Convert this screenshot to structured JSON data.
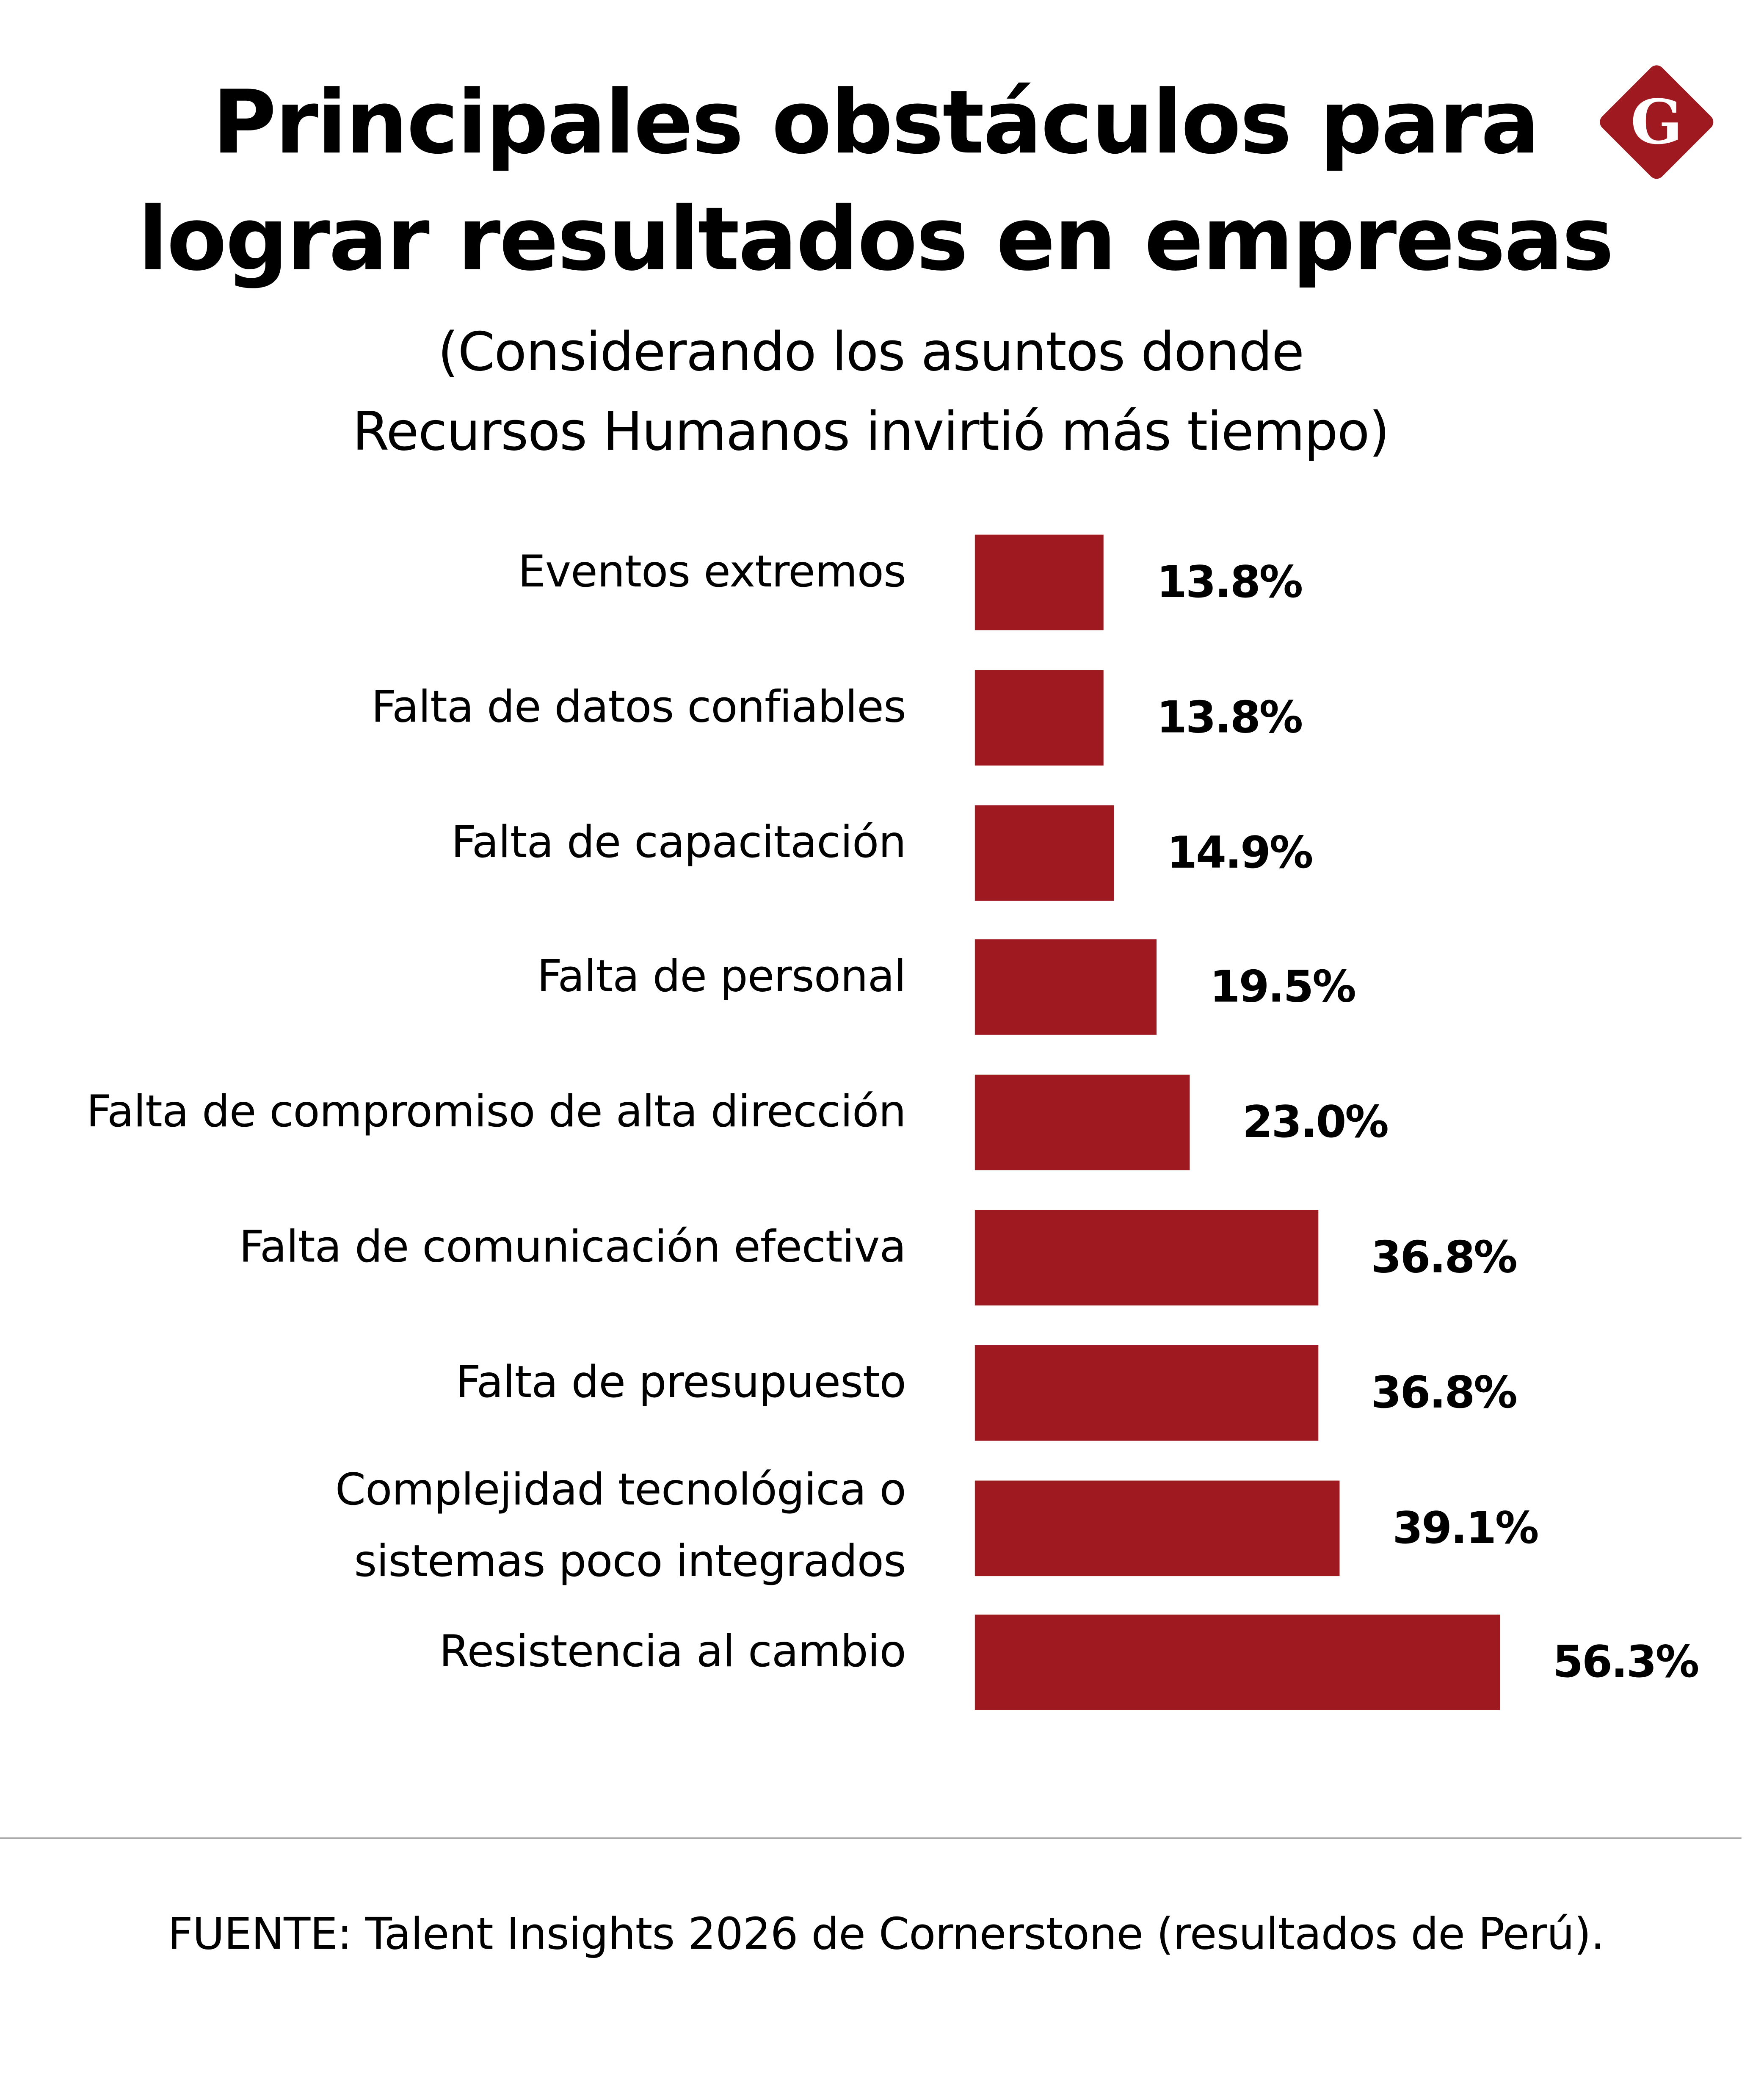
{
  "chart_data": {
    "type": "bar",
    "orientation": "horizontal",
    "title": "Principales obstáculos para lograr resultados en empresas",
    "title_lines": [
      "Principales obstáculos para",
      "lograr resultados en empresas"
    ],
    "subtitle_lines": [
      "(Considerando los asuntos donde",
      "Recursos Humanos invirtió más tiempo)"
    ],
    "categories": [
      "Eventos extremos",
      "Falta de datos confiables",
      "Falta de capacitación",
      "Falta de personal",
      "Falta de compromiso de alta dirección",
      "Falta de comunicación efectiva",
      "Falta de presupuesto",
      "Complejidad tecnológica o sistemas poco integrados",
      "Resistencia al cambio"
    ],
    "category_lines": [
      [
        "Eventos extremos"
      ],
      [
        "Falta de datos confiables"
      ],
      [
        "Falta de capacitación"
      ],
      [
        "Falta de personal"
      ],
      [
        "Falta de compromiso de alta dirección"
      ],
      [
        "Falta de comunicación efectiva"
      ],
      [
        "Falta de presupuesto"
      ],
      [
        "Complejidad tecnológica o",
        "sistemas poco integrados"
      ],
      [
        "Resistencia al cambio"
      ]
    ],
    "values": [
      13.8,
      13.8,
      14.9,
      19.5,
      23.0,
      36.8,
      36.8,
      39.1,
      56.3
    ],
    "value_labels": [
      "13.8%",
      "13.8%",
      "14.9%",
      "19.5%",
      "23.0%",
      "36.8%",
      "36.8%",
      "39.1%",
      "56.3%"
    ],
    "unit": "%",
    "grid": false,
    "legend": "none",
    "bar_color": "#9F1A20"
  },
  "source": "FUENTE: Talent Insights 2026 de Cornerstone (resultados de Perú).",
  "logo": {
    "letter": "G",
    "color": "#9F1A20"
  }
}
